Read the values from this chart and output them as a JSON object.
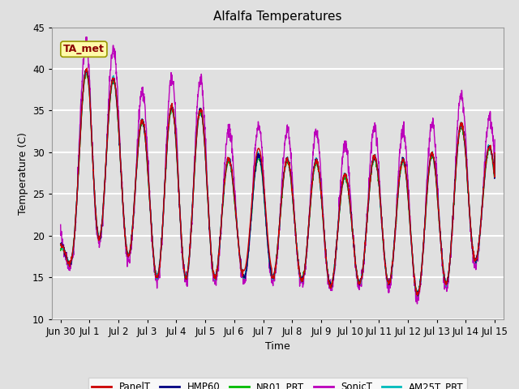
{
  "title": "Alfalfa Temperatures",
  "xlabel": "Time",
  "ylabel": "Temperature (C)",
  "ylim": [
    10,
    45
  ],
  "xtick_labels": [
    "Jun 30",
    "Jul 1",
    "Jul 2",
    "Jul 3",
    "Jul 4",
    "Jul 5",
    "Jul 6",
    "Jul 7",
    "Jul 8",
    "Jul 9",
    "Jul 10",
    "Jul 11",
    "Jul 12",
    "Jul 13",
    "Jul 14",
    "Jul 15"
  ],
  "xtick_positions": [
    0,
    1,
    2,
    3,
    4,
    5,
    6,
    7,
    8,
    9,
    10,
    11,
    12,
    13,
    14,
    15
  ],
  "annotation_text": "TA_met",
  "annotation_color": "#8B0000",
  "annotation_bg": "#FFFAAA",
  "bg_color": "#E0E0E0",
  "grid_color": "#FFFFFF",
  "colors": {
    "PanelT": "#CC0000",
    "HMP60": "#000080",
    "NR01_PRT": "#00BB00",
    "SonicT": "#BB00BB",
    "AM25T_PRT": "#00BBBB"
  },
  "peak_temps": [
    20,
    43,
    38,
    33,
    36,
    35,
    28,
    30,
    29,
    29,
    27,
    30,
    29,
    30,
    34,
    30
  ],
  "min_temps": [
    15,
    20,
    19,
    15,
    15,
    15,
    15,
    15,
    15,
    14,
    14,
    15,
    13,
    13,
    17,
    17
  ],
  "linewidth": 1.0
}
